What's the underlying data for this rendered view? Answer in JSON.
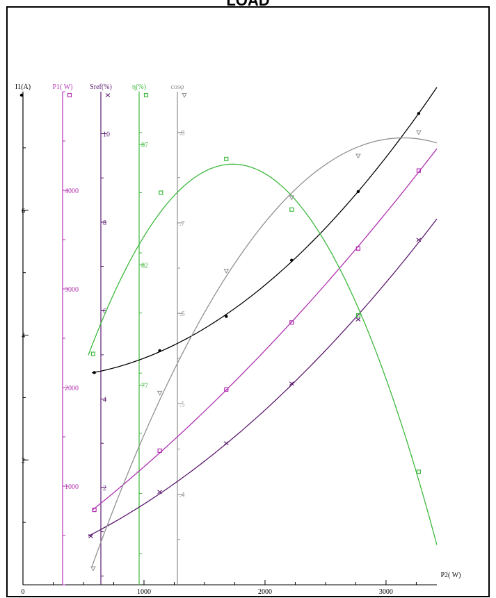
{
  "title": "LOAD",
  "chart_data": {
    "type": "line",
    "title": "LOAD",
    "xlabel": "P2( W)",
    "xlim": [
      0,
      3420
    ],
    "xticks": [
      "0",
      "1000",
      "2000",
      "3000"
    ],
    "axes": [
      {
        "key": "i1",
        "label": "I1(A)",
        "color": "#000000",
        "marker": "dot",
        "range": [
          0,
          7.9
        ],
        "ticks": [
          {
            "v": 2,
            "t": "2"
          },
          {
            "v": 4,
            "t": "4"
          },
          {
            "v": 6,
            "t": "6"
          }
        ]
      },
      {
        "key": "p1",
        "label": "P1( W)",
        "color": "#b030b0",
        "marker": "square",
        "range": [
          0,
          5000
        ],
        "ticks": [
          {
            "v": 1000,
            "t": "1000"
          },
          {
            "v": 2000,
            "t": "2000"
          },
          {
            "v": 3000,
            "t": "3000"
          },
          {
            "v": 4000,
            "t": "4000"
          }
        ]
      },
      {
        "key": "sref",
        "label": "Sref(%)",
        "color": "#5a1a6e",
        "marker": "cross",
        "range": [
          -0.2,
          10.95
        ],
        "ticks": [
          {
            "v": 2,
            "t": "2"
          },
          {
            "v": 4,
            "t": "4"
          },
          {
            "v": 6,
            "t": "6"
          },
          {
            "v": 8,
            "t": "8"
          },
          {
            "v": 10,
            "t": "10"
          }
        ]
      },
      {
        "key": "eta",
        "label": "η(%)",
        "color": "#3cb83c",
        "marker": "square",
        "range": [
          68.7,
          89.2
        ],
        "ticks": [
          {
            "v": 77,
            "t": "77"
          },
          {
            "v": 82,
            "t": "82"
          },
          {
            "v": 87,
            "t": "87"
          }
        ]
      },
      {
        "key": "cos",
        "label": "cosφ",
        "color": "#909090",
        "marker": "triangle",
        "range": [
          0.3,
          0.845
        ],
        "ticks": [
          {
            "v": 0.4,
            "t": ".4"
          },
          {
            "v": 0.5,
            "t": ".5"
          },
          {
            "v": 0.6,
            "t": ".6"
          },
          {
            "v": 0.7,
            "t": ".7"
          },
          {
            "v": 0.8,
            "t": ".8"
          }
        ]
      }
    ],
    "series": [
      {
        "axis": "i1",
        "x": [
          590,
          1130,
          1680,
          2220,
          2770,
          3270
        ],
        "y": [
          3.4,
          3.75,
          4.3,
          5.2,
          6.3,
          7.55
        ],
        "curve_x": [
          570,
          3420
        ]
      },
      {
        "axis": "p1",
        "x": [
          590,
          1130,
          1680,
          2220,
          2770,
          3270
        ],
        "y": [
          760,
          1360,
          1980,
          2660,
          3410,
          4200
        ],
        "curve_x": [
          570,
          3420
        ]
      },
      {
        "axis": "sref",
        "x": [
          560,
          1130,
          1680,
          2220,
          2770,
          3270
        ],
        "y": [
          0.9,
          1.9,
          3.0,
          4.35,
          5.8,
          7.6
        ],
        "curve_x": [
          540,
          3420
        ]
      },
      {
        "axis": "eta",
        "x": [
          580,
          1140,
          1680,
          2220,
          2770,
          3270
        ],
        "y": [
          78.3,
          85.0,
          86.4,
          84.3,
          79.9,
          73.4
        ],
        "curve_x": [
          540,
          3420
        ]
      },
      {
        "axis": "cos",
        "x": [
          580,
          1130,
          1680,
          2220,
          2770,
          3270
        ],
        "y": [
          0.318,
          0.512,
          0.647,
          0.728,
          0.774,
          0.8
        ],
        "curve_x": [
          570,
          3420
        ]
      }
    ]
  }
}
